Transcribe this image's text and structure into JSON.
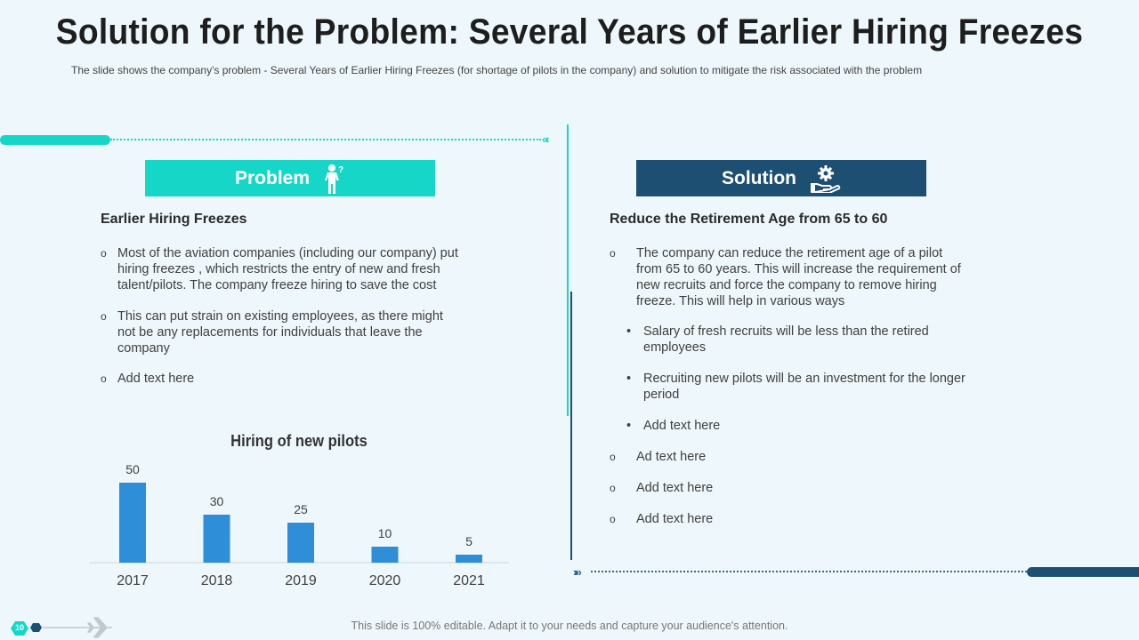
{
  "title": "Solution for the Problem: Several Years of Earlier Hiring Freezes",
  "subtitle": "The slide shows the company's problem - Several Years of Earlier Hiring Freezes (for shortage of pilots in the company) and solution to mitigate the risk associated with the problem",
  "colors": {
    "teal": "#16d6c8",
    "navy": "#1d4f73",
    "bar": "#2e8ed8",
    "background": "#eef7fb"
  },
  "problem": {
    "header": "Problem",
    "icon": "person-question-icon",
    "heading": "Earlier Hiring Freezes",
    "bullets": [
      "Most of the aviation companies (including our company) put hiring freezes , which restricts the entry of new and fresh talent/pilots. The company freeze hiring to save the cost",
      "This can put strain on existing employees, as there might not be any replacements for individuals that leave the company",
      "Add text here"
    ]
  },
  "solution": {
    "header": "Solution",
    "icon": "hand-gear-icon",
    "heading": "Reduce the Retirement Age from 65 to 60",
    "main": "The company can reduce the retirement age of a pilot from 65 to 60 years. This will increase the requirement of new recruits and force the company to remove hiring freeze. This will help in various ways",
    "sub_bullets": [
      "Salary of fresh recruits will be less than the retired employees",
      "Recruiting new pilots will be an investment for the longer period",
      "Add text here"
    ],
    "more": [
      "Ad text here",
      "Add text here",
      "Add text here"
    ]
  },
  "chart_data": {
    "type": "bar",
    "title": "Hiring of new pilots",
    "categories": [
      "2017",
      "2018",
      "2019",
      "2020",
      "2021"
    ],
    "values": [
      50,
      30,
      25,
      10,
      5
    ],
    "xlabel": "",
    "ylabel": "",
    "ylim": [
      0,
      50
    ],
    "grid": false
  },
  "footer": {
    "page_number": "10",
    "text": "This slide is 100% editable. Adapt it to your needs and capture your audience's attention."
  }
}
